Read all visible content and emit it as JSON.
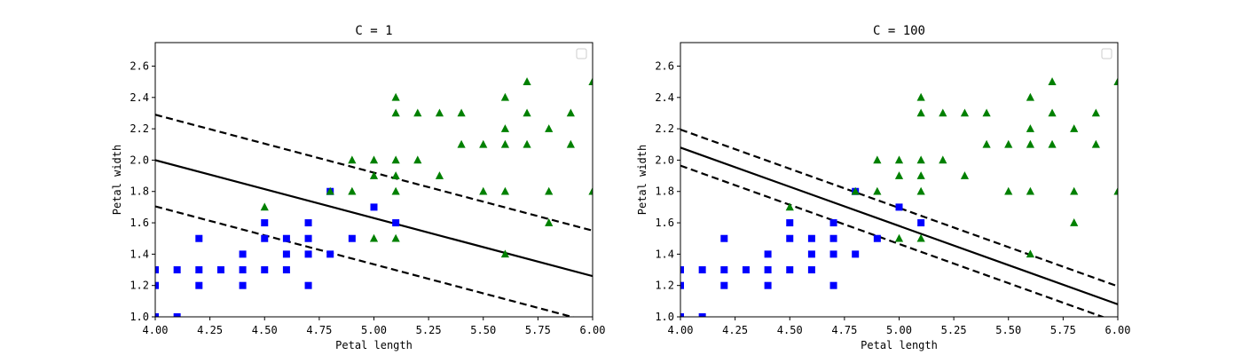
{
  "chart_data": [
    {
      "type": "scatter",
      "title": "C = 1",
      "xlabel": "Petal length",
      "ylabel": "Petal width",
      "xlim": [
        4.0,
        6.0
      ],
      "ylim": [
        1.0,
        2.75
      ],
      "xticks": [
        "4.00",
        "4.25",
        "4.50",
        "4.75",
        "5.00",
        "5.25",
        "5.50",
        "5.75",
        "6.00"
      ],
      "yticks": [
        "1.0",
        "1.2",
        "1.4",
        "1.6",
        "1.8",
        "2.0",
        "2.2",
        "2.4",
        "2.6"
      ],
      "grid": false,
      "legend": "top-right",
      "series": [
        {
          "marker": "square",
          "color": "#0000ff",
          "points": [
            [
              4.0,
              1.3
            ],
            [
              4.0,
              1.2
            ],
            [
              4.0,
              1.0
            ],
            [
              4.1,
              1.3
            ],
            [
              4.1,
              1.0
            ],
            [
              4.2,
              1.5
            ],
            [
              4.2,
              1.3
            ],
            [
              4.2,
              1.2
            ],
            [
              4.3,
              1.3
            ],
            [
              4.4,
              1.4
            ],
            [
              4.4,
              1.3
            ],
            [
              4.4,
              1.2
            ],
            [
              4.5,
              1.6
            ],
            [
              4.5,
              1.5
            ],
            [
              4.5,
              1.3
            ],
            [
              4.6,
              1.5
            ],
            [
              4.6,
              1.4
            ],
            [
              4.6,
              1.3
            ],
            [
              4.7,
              1.6
            ],
            [
              4.7,
              1.5
            ],
            [
              4.7,
              1.4
            ],
            [
              4.7,
              1.2
            ],
            [
              4.8,
              1.8
            ],
            [
              4.8,
              1.4
            ],
            [
              4.9,
              1.5
            ],
            [
              5.0,
              1.7
            ],
            [
              5.1,
              1.6
            ]
          ]
        },
        {
          "marker": "triangle",
          "color": "#008000",
          "points": [
            [
              4.5,
              1.7
            ],
            [
              4.8,
              1.8
            ],
            [
              4.9,
              2.0
            ],
            [
              4.9,
              1.8
            ],
            [
              5.0,
              2.0
            ],
            [
              5.0,
              1.9
            ],
            [
              5.0,
              1.5
            ],
            [
              5.1,
              2.4
            ],
            [
              5.1,
              2.3
            ],
            [
              5.1,
              2.0
            ],
            [
              5.1,
              1.9
            ],
            [
              5.1,
              1.8
            ],
            [
              5.1,
              1.5
            ],
            [
              5.2,
              2.3
            ],
            [
              5.2,
              2.0
            ],
            [
              5.3,
              2.3
            ],
            [
              5.3,
              1.9
            ],
            [
              5.4,
              2.3
            ],
            [
              5.4,
              2.1
            ],
            [
              5.5,
              2.1
            ],
            [
              5.5,
              1.8
            ],
            [
              5.6,
              2.4
            ],
            [
              5.6,
              2.2
            ],
            [
              5.6,
              2.1
            ],
            [
              5.6,
              1.8
            ],
            [
              5.6,
              1.4
            ],
            [
              5.7,
              2.5
            ],
            [
              5.7,
              2.3
            ],
            [
              5.7,
              2.1
            ],
            [
              5.8,
              2.2
            ],
            [
              5.8,
              1.8
            ],
            [
              5.8,
              1.6
            ],
            [
              5.9,
              2.3
            ],
            [
              5.9,
              2.1
            ],
            [
              6.0,
              2.5
            ],
            [
              6.0,
              1.8
            ]
          ]
        }
      ],
      "decision_boundary": [
        [
          4.0,
          2.0
        ],
        [
          6.0,
          1.26
        ]
      ],
      "margin_upper": [
        [
          4.0,
          2.29
        ],
        [
          6.0,
          1.55
        ]
      ],
      "margin_lower": [
        [
          4.0,
          1.705
        ],
        [
          6.0,
          0.965
        ]
      ]
    },
    {
      "type": "scatter",
      "title": "C = 100",
      "xlabel": "Petal length",
      "ylabel": "Petal width",
      "xlim": [
        4.0,
        6.0
      ],
      "ylim": [
        1.0,
        2.75
      ],
      "xticks": [
        "4.00",
        "4.25",
        "4.50",
        "4.75",
        "5.00",
        "5.25",
        "5.50",
        "5.75",
        "6.00"
      ],
      "yticks": [
        "1.0",
        "1.2",
        "1.4",
        "1.6",
        "1.8",
        "2.0",
        "2.2",
        "2.4",
        "2.6"
      ],
      "grid": false,
      "legend": "top-right",
      "series": [
        {
          "marker": "square",
          "color": "#0000ff",
          "points": [
            [
              4.0,
              1.3
            ],
            [
              4.0,
              1.2
            ],
            [
              4.0,
              1.0
            ],
            [
              4.1,
              1.3
            ],
            [
              4.1,
              1.0
            ],
            [
              4.2,
              1.5
            ],
            [
              4.2,
              1.3
            ],
            [
              4.2,
              1.2
            ],
            [
              4.3,
              1.3
            ],
            [
              4.4,
              1.4
            ],
            [
              4.4,
              1.3
            ],
            [
              4.4,
              1.2
            ],
            [
              4.5,
              1.6
            ],
            [
              4.5,
              1.5
            ],
            [
              4.5,
              1.3
            ],
            [
              4.6,
              1.5
            ],
            [
              4.6,
              1.4
            ],
            [
              4.6,
              1.3
            ],
            [
              4.7,
              1.6
            ],
            [
              4.7,
              1.5
            ],
            [
              4.7,
              1.4
            ],
            [
              4.7,
              1.2
            ],
            [
              4.8,
              1.8
            ],
            [
              4.8,
              1.4
            ],
            [
              4.9,
              1.5
            ],
            [
              5.0,
              1.7
            ],
            [
              5.1,
              1.6
            ]
          ]
        },
        {
          "marker": "triangle",
          "color": "#008000",
          "points": [
            [
              4.5,
              1.7
            ],
            [
              4.8,
              1.8
            ],
            [
              4.9,
              2.0
            ],
            [
              4.9,
              1.8
            ],
            [
              5.0,
              2.0
            ],
            [
              5.0,
              1.9
            ],
            [
              5.0,
              1.5
            ],
            [
              5.1,
              2.4
            ],
            [
              5.1,
              2.3
            ],
            [
              5.1,
              2.0
            ],
            [
              5.1,
              1.9
            ],
            [
              5.1,
              1.8
            ],
            [
              5.1,
              1.5
            ],
            [
              5.2,
              2.3
            ],
            [
              5.2,
              2.0
            ],
            [
              5.3,
              2.3
            ],
            [
              5.3,
              1.9
            ],
            [
              5.4,
              2.3
            ],
            [
              5.4,
              2.1
            ],
            [
              5.5,
              2.1
            ],
            [
              5.5,
              1.8
            ],
            [
              5.6,
              2.4
            ],
            [
              5.6,
              2.2
            ],
            [
              5.6,
              2.1
            ],
            [
              5.6,
              1.8
            ],
            [
              5.6,
              1.4
            ],
            [
              5.7,
              2.5
            ],
            [
              5.7,
              2.3
            ],
            [
              5.7,
              2.1
            ],
            [
              5.8,
              2.2
            ],
            [
              5.8,
              1.8
            ],
            [
              5.8,
              1.6
            ],
            [
              5.9,
              2.3
            ],
            [
              5.9,
              2.1
            ],
            [
              6.0,
              2.5
            ],
            [
              6.0,
              1.8
            ]
          ]
        }
      ],
      "decision_boundary": [
        [
          4.0,
          2.08
        ],
        [
          6.0,
          1.08
        ]
      ],
      "margin_upper": [
        [
          4.0,
          2.195
        ],
        [
          6.0,
          1.195
        ]
      ],
      "margin_lower": [
        [
          4.0,
          1.965
        ],
        [
          6.0,
          0.965
        ]
      ]
    }
  ]
}
